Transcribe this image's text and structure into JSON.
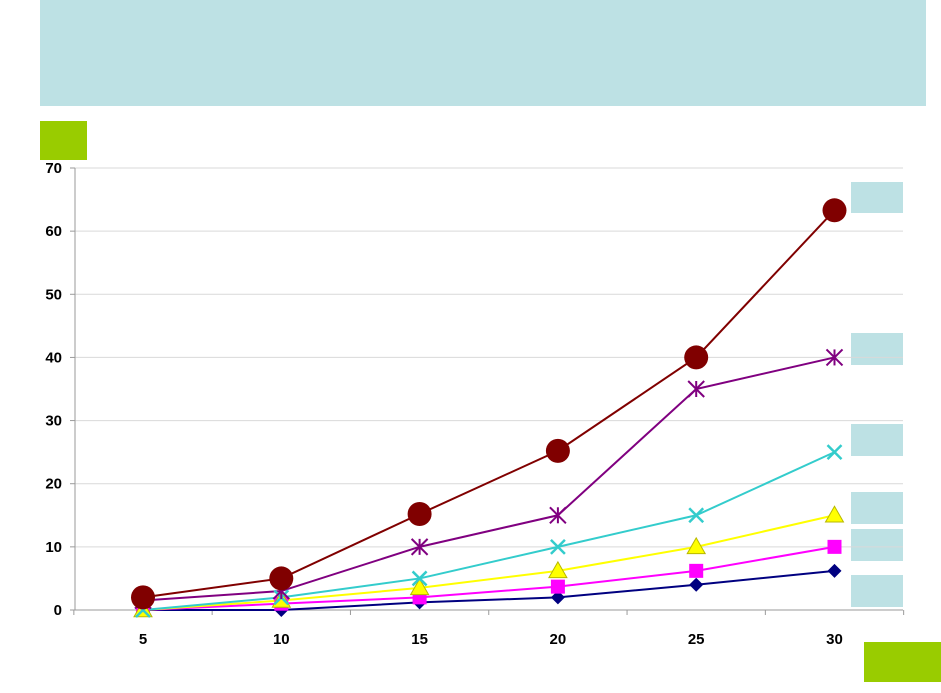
{
  "colors": {
    "header_band": "#bde1e4",
    "accent_green": "#99cc00",
    "label_box": "#bde1e4",
    "gridline": "#d9d9d9",
    "axis": "#9a9a9a"
  },
  "chart_data": {
    "type": "line",
    "title": "",
    "xlabel": "",
    "ylabel": "",
    "x": [
      5,
      10,
      15,
      20,
      25,
      30
    ],
    "ylim": [
      0,
      70
    ],
    "yticks": [
      0,
      10,
      20,
      30,
      40,
      50,
      60,
      70
    ],
    "grid": true,
    "series": [
      {
        "color": "#000080",
        "marker": "diamond",
        "values": [
          0,
          0,
          1.2,
          2,
          4,
          6.2
        ]
      },
      {
        "color": "#ff00ff",
        "marker": "square",
        "values": [
          0,
          1,
          2,
          3.7,
          6.2,
          10
        ]
      },
      {
        "color": "#ffff00",
        "marker": "triangle",
        "values": [
          0,
          1.5,
          3.5,
          6.2,
          10,
          15
        ]
      },
      {
        "color": "#33cccc",
        "marker": "x",
        "values": [
          0,
          2,
          5,
          10,
          15,
          25
        ]
      },
      {
        "color": "#800080",
        "marker": "star",
        "values": [
          1.5,
          3,
          10,
          15,
          35,
          40
        ]
      },
      {
        "color": "#800000",
        "marker": "circle",
        "values": [
          2,
          5,
          15.2,
          25.2,
          40,
          63.3
        ]
      }
    ]
  }
}
